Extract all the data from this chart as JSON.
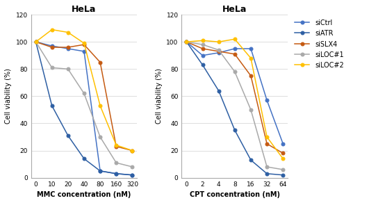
{
  "mmc_x_labels": [
    "0",
    "10",
    "20",
    "40",
    "80",
    "160",
    "320"
  ],
  "cpt_x_labels": [
    "0",
    "2",
    "4",
    "8",
    "16",
    "32",
    "64"
  ],
  "mmc_siCtrl": [
    100,
    97,
    95,
    93,
    5,
    3,
    2
  ],
  "mmc_siATR": [
    100,
    53,
    31,
    14,
    5,
    3,
    2
  ],
  "mmc_siSLX4": [
    100,
    96,
    96,
    98,
    85,
    23,
    20
  ],
  "mmc_siLOC1": [
    100,
    81,
    80,
    62,
    30,
    11,
    8
  ],
  "mmc_siLOC2": [
    100,
    109,
    107,
    99,
    53,
    24,
    20
  ],
  "cpt_siCtrl": [
    100,
    90,
    92,
    95,
    95,
    57,
    25
  ],
  "cpt_siATR": [
    100,
    83,
    64,
    35,
    13,
    3,
    2
  ],
  "cpt_siSLX4": [
    100,
    95,
    93,
    91,
    75,
    25,
    18
  ],
  "cpt_siLOC1": [
    100,
    98,
    94,
    78,
    50,
    8,
    6
  ],
  "cpt_siLOC2": [
    100,
    101,
    100,
    102,
    88,
    30,
    14
  ],
  "color_siCtrl": "#4472C4",
  "color_siATR": "#2E5FA3",
  "color_siSLX4": "#C55A11",
  "color_siLOC1": "#A9A9A9",
  "color_siLOC2": "#FFC000",
  "title": "HeLa",
  "mmc_xlabel": "MMC concentration (nM)",
  "cpt_xlabel": "CPT concentration (nM)",
  "ylabel": "Cell viability (%)",
  "ylim": [
    0,
    120
  ],
  "yticks": [
    0,
    20,
    40,
    60,
    80,
    100,
    120
  ],
  "legend_labels": [
    "siCtrl",
    "siATR",
    "siSLX4",
    "siLOC#1",
    "siLOC#2"
  ]
}
